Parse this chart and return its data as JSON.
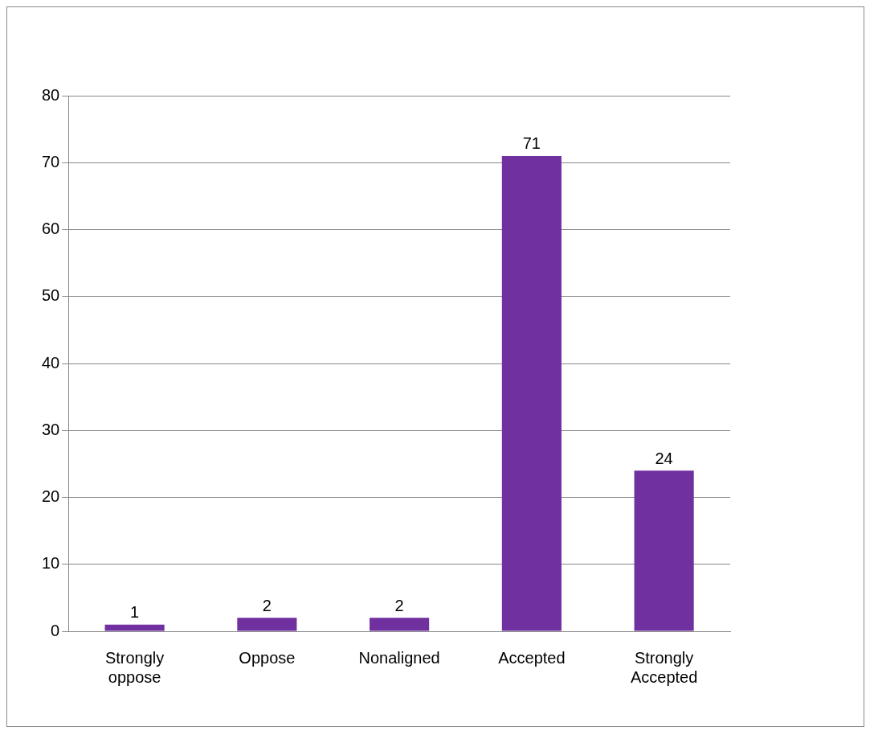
{
  "chart_data": {
    "type": "bar",
    "categories": [
      "Strongly oppose",
      "Oppose",
      "Nonaligned",
      "Accepted",
      "Strongly Accepted"
    ],
    "values": [
      1,
      2,
      2,
      71,
      24
    ],
    "color": "#7030a0",
    "ylim": [
      0,
      80
    ],
    "yticks": [
      0,
      10,
      20,
      30,
      40,
      50,
      60,
      70,
      80
    ],
    "grid": "y",
    "data_labels": true,
    "legend": false
  }
}
